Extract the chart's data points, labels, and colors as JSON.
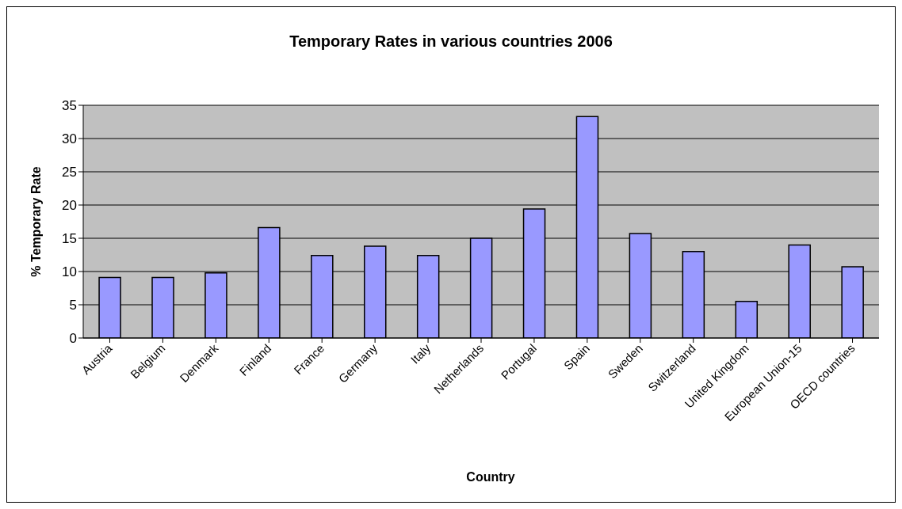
{
  "chart_data": {
    "type": "bar",
    "title": "Temporary Rates in various countries 2006",
    "xlabel": "Country",
    "ylabel": "% Temporary Rate",
    "categories": [
      "Austria",
      "Belgium",
      "Denmark",
      "Finland",
      "France",
      "Germany",
      "Italy",
      "Netherlands",
      "Portugal",
      "Spain",
      "Sweden",
      "Switzerland",
      "United Kingdom",
      "European Union-15",
      "OECD countries"
    ],
    "values": [
      9.1,
      9.1,
      9.8,
      16.6,
      12.4,
      13.8,
      12.4,
      15.0,
      19.4,
      33.3,
      15.7,
      13.0,
      5.5,
      14.0,
      10.7
    ],
    "color": "#9999ff",
    "ylim": [
      0,
      35
    ],
    "yticks": [
      0,
      5,
      10,
      15,
      20,
      25,
      30,
      35
    ],
    "grid": "y",
    "legend": false
  }
}
